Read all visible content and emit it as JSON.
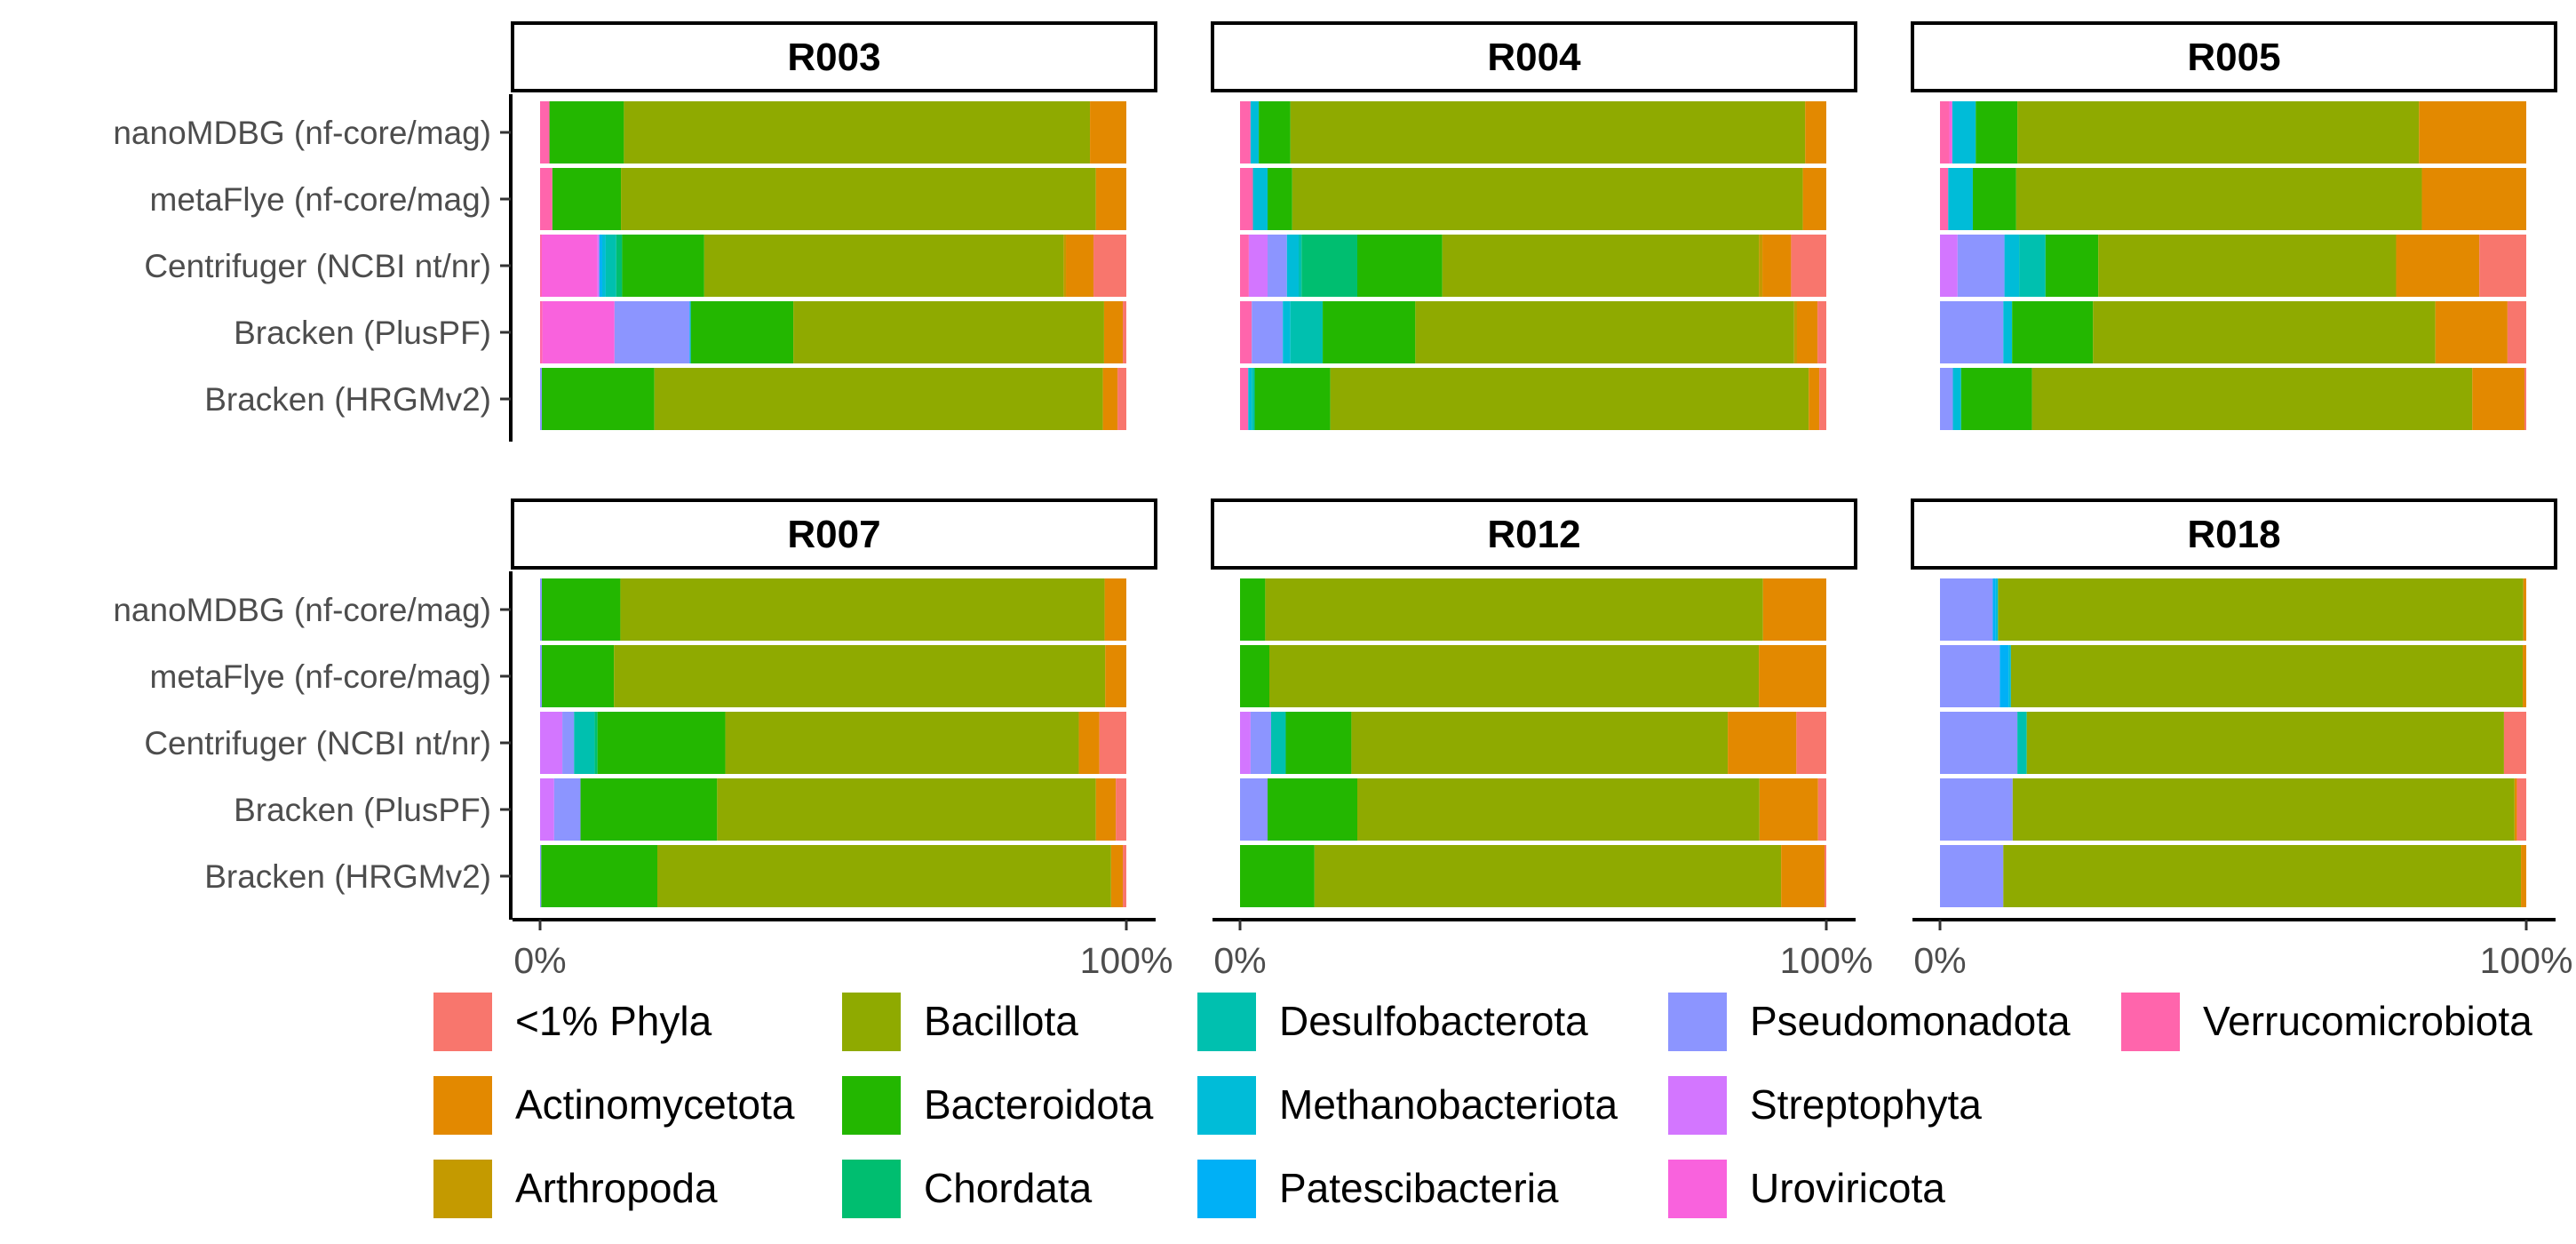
{
  "chart_data": {
    "type": "bar",
    "orientation": "horizontal",
    "stacked": "percent",
    "xlim": [
      0,
      100
    ],
    "x_tick_labels": [
      "0%",
      "100%"
    ],
    "categories": [
      "nanoMDBG (nf-core/mag)",
      "metaFlye (nf-core/mag)",
      "Centrifuger (NCBI nt/nr)",
      "Bracken (PlusPF)",
      "Bracken (HRGMv2)"
    ],
    "legend_position": "bottom",
    "phyla": [
      {
        "name": "<1% Phyla",
        "color": "#F8766D"
      },
      {
        "name": "Actinomycetota",
        "color": "#E38900"
      },
      {
        "name": "Arthropoda",
        "color": "#C49A00"
      },
      {
        "name": "Bacillota",
        "color": "#8FAA00"
      },
      {
        "name": "Bacteroidota",
        "color": "#23B700"
      },
      {
        "name": "Chordata",
        "color": "#00BE70"
      },
      {
        "name": "Desulfobacterota",
        "color": "#00C0AF"
      },
      {
        "name": "Methanobacteriota",
        "color": "#00BCD8"
      },
      {
        "name": "Patescibacteria",
        "color": "#00B0F6"
      },
      {
        "name": "Pseudomonadota",
        "color": "#8C95FF"
      },
      {
        "name": "Streptophyta",
        "color": "#D376FF"
      },
      {
        "name": "Uroviricota",
        "color": "#F962DD"
      },
      {
        "name": "Verrucomicrobiota",
        "color": "#FF65AC"
      }
    ],
    "panels": [
      {
        "title": "R003",
        "rows": [
          {
            "Verrucomicrobiota": 1.6,
            "Bacteroidota": 12.7,
            "Bacillota": 79.5,
            "Actinomycetota": 6.2
          },
          {
            "Verrucomicrobiota": 2.1,
            "Bacteroidota": 11.7,
            "Bacillota": 81.0,
            "Actinomycetota": 5.2
          },
          {
            "Verrucomicrobiota": 0.3,
            "Uroviricota": 9.5,
            "Streptophyta": 0.3,
            "Patescibacteria": 0.5,
            "Methanobacteriota": 0.6,
            "Desulfobacterota": 1.8,
            "Chordata": 1.0,
            "Bacteroidota": 14.0,
            "Bacillota": 61.3,
            "Arthropoda": 0.4,
            "Actinomycetota": 4.7,
            "<1% Phyla": 5.6
          },
          {
            "Verrucomicrobiota": 0.4,
            "Uroviricota": 12.3,
            "Pseudomonadota": 12.8,
            "Patescibacteria": 0.2,
            "Bacteroidota": 17.5,
            "Bacillota": 53.0,
            "Actinomycetota": 3.2,
            "<1% Phyla": 0.6
          },
          {
            "Pseudomonadota": 0.3,
            "Bacteroidota": 19.2,
            "Bacillota": 76.5,
            "Actinomycetota": 2.5,
            "<1% Phyla": 1.5
          }
        ]
      },
      {
        "title": "R004",
        "rows": [
          {
            "Verrucomicrobiota": 1.8,
            "Methanobacteriota": 1.4,
            "Bacteroidota": 5.4,
            "Bacillota": 87.8,
            "Actinomycetota": 3.6
          },
          {
            "Verrucomicrobiota": 2.2,
            "Methanobacteriota": 2.5,
            "Bacteroidota": 4.2,
            "Bacillota": 87.1,
            "Actinomycetota": 4.0
          },
          {
            "Verrucomicrobiota": 1.5,
            "Streptophyta": 3.2,
            "Pseudomonadota": 3.3,
            "Methanobacteriota": 2.0,
            "Desulfobacterota": 0.5,
            "Chordata": 9.5,
            "Bacteroidota": 14.5,
            "Bacillota": 54.0,
            "Arthropoda": 0.6,
            "Actinomycetota": 4.9,
            "<1% Phyla": 6.0
          },
          {
            "Verrucomicrobiota": 2.0,
            "Pseudomonadota": 5.3,
            "Methanobacteriota": 1.3,
            "Desulfobacterota": 5.5,
            "Bacteroidota": 15.8,
            "Bacillota": 64.6,
            "Arthropoda": 0.5,
            "Actinomycetota": 3.5,
            "<1% Phyla": 1.5
          },
          {
            "Verrucomicrobiota": 1.4,
            "Methanobacteriota": 0.6,
            "Desulfobacterota": 0.5,
            "Bacteroidota": 12.9,
            "Bacillota": 81.6,
            "Actinomycetota": 1.8,
            "<1% Phyla": 1.2
          }
        ]
      },
      {
        "title": "R005",
        "rows": [
          {
            "Verrucomicrobiota": 1.6,
            "Uroviricota": 0.5,
            "Methanobacteriota": 4.0,
            "Bacteroidota": 7.1,
            "Bacillota": 68.5,
            "Actinomycetota": 18.3
          },
          {
            "Verrucomicrobiota": 1.4,
            "Methanobacteriota": 4.2,
            "Bacteroidota": 7.4,
            "Bacillota": 69.2,
            "Actinomycetota": 17.8
          },
          {
            "Streptophyta": 3.0,
            "Pseudomonadota": 8.0,
            "Methanobacteriota": 2.5,
            "Desulfobacterota": 4.5,
            "Bacteroidota": 9.0,
            "Bacillota": 50.8,
            "Actinomycetota": 14.2,
            "<1% Phyla": 8.0
          },
          {
            "Pseudomonadota": 10.8,
            "Methanobacteriota": 1.5,
            "Bacteroidota": 13.8,
            "Bacillota": 58.4,
            "Actinomycetota": 12.3,
            "<1% Phyla": 3.2
          },
          {
            "Pseudomonadota": 2.2,
            "Methanobacteriota": 1.4,
            "Bacteroidota": 12.1,
            "Bacillota": 75.1,
            "Actinomycetota": 8.9,
            "<1% Phyla": 0.3
          }
        ]
      },
      {
        "title": "R007",
        "rows": [
          {
            "Pseudomonadota": 0.3,
            "Bacteroidota": 13.4,
            "Bacillota": 82.6,
            "Actinomycetota": 3.7
          },
          {
            "Pseudomonadota": 0.3,
            "Bacteroidota": 12.3,
            "Bacillota": 83.8,
            "Actinomycetota": 3.6
          },
          {
            "Streptophyta": 3.8,
            "Pseudomonadota": 2.0,
            "Desulfobacterota": 3.5,
            "Chordata": 0.5,
            "Bacteroidota": 21.8,
            "Bacillota": 60.3,
            "Actinomycetota": 3.5,
            "<1% Phyla": 4.6
          },
          {
            "Streptophyta": 2.4,
            "Pseudomonadota": 4.5,
            "Bacteroidota": 23.3,
            "Bacillota": 64.6,
            "Actinomycetota": 3.4,
            "<1% Phyla": 1.8
          },
          {
            "Pseudomonadota": 0.2,
            "Bacteroidota": 19.8,
            "Bacillota": 77.4,
            "Actinomycetota": 2.0,
            "<1% Phyla": 0.6
          }
        ]
      },
      {
        "title": "R012",
        "rows": [
          {
            "Bacteroidota": 4.3,
            "Bacillota": 84.9,
            "Actinomycetota": 10.8
          },
          {
            "Bacteroidota": 5.0,
            "Bacillota": 83.5,
            "Actinomycetota": 11.5
          },
          {
            "Streptophyta": 1.8,
            "Pseudomonadota": 3.5,
            "Desulfobacterota": 2.5,
            "Bacteroidota": 11.2,
            "Bacillota": 64.2,
            "Actinomycetota": 11.7,
            "<1% Phyla": 5.1
          },
          {
            "Pseudomonadota": 4.7,
            "Bacteroidota": 15.3,
            "Bacillota": 68.6,
            "Actinomycetota": 10.0,
            "<1% Phyla": 1.4
          },
          {
            "Bacteroidota": 12.7,
            "Bacillota": 79.6,
            "Actinomycetota": 7.4,
            "<1% Phyla": 0.3
          }
        ]
      },
      {
        "title": "R018",
        "rows": [
          {
            "Pseudomonadota": 9.0,
            "Methanobacteriota": 0.4,
            "Patescibacteria": 0.5,
            "Bacillota": 89.6,
            "Actinomycetota": 0.5
          },
          {
            "Pseudomonadota": 10.2,
            "Methanobacteriota": 0.4,
            "Patescibacteria": 1.5,
            "Bacillota": 87.3,
            "Actinomycetota": 0.6
          },
          {
            "Pseudomonadota": 13.2,
            "Desulfobacterota": 1.6,
            "Bacillota": 81.4,
            "<1% Phyla": 3.8
          },
          {
            "Pseudomonadota": 12.4,
            "Bacillota": 85.6,
            "Actinomycetota": 0.4,
            "<1% Phyla": 1.6
          },
          {
            "Pseudomonadota": 10.8,
            "Bacillota": 88.3,
            "Actinomycetota": 0.9
          }
        ]
      }
    ]
  }
}
